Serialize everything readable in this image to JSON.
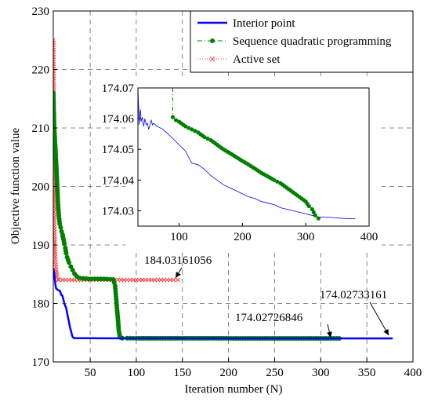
{
  "chart_data": [
    {
      "type": "line",
      "xlabel": "Iteration number (N)",
      "ylabel": "Objective function value",
      "xlim": [
        10,
        400
      ],
      "ylim": [
        170,
        230
      ],
      "xticks": [
        50,
        100,
        150,
        200,
        250,
        300,
        350,
        400
      ],
      "yticks": [
        170,
        180,
        190,
        200,
        210,
        220,
        230
      ],
      "grid": true,
      "legend_position": "top-right",
      "series": [
        {
          "name": "Interior point",
          "color": "#0000ff",
          "style": "solid",
          "marker": "none",
          "x": [
            10,
            11,
            12,
            13,
            15,
            17,
            19,
            20,
            22,
            24,
            26,
            28,
            30,
            31,
            32,
            33,
            35,
            40,
            50,
            80,
            100,
            150,
            200,
            250,
            300,
            350,
            378
          ],
          "y": [
            186.0,
            185.2,
            183.5,
            182.6,
            182.3,
            182.2,
            181.4,
            181.3,
            180.0,
            179.2,
            177.6,
            176.0,
            174.8,
            174.3,
            174.12,
            174.07,
            174.06,
            174.06,
            174.05,
            174.045,
            174.04,
            174.035,
            174.032,
            174.03,
            174.029,
            174.028,
            174.02733161
          ]
        },
        {
          "name": "Sequence quadratic programming",
          "color": "#008000",
          "style": "dash-dot",
          "marker": "circle",
          "x": [
            10,
            11,
            12,
            13,
            14,
            15,
            16,
            17,
            18,
            19,
            20,
            21,
            22,
            23,
            24,
            25,
            27,
            29,
            31,
            33,
            35,
            38,
            42,
            45,
            48,
            55,
            65,
            75,
            77,
            78,
            79,
            80,
            81,
            82,
            83,
            85,
            90,
            100,
            150,
            200,
            250,
            300,
            320
          ],
          "y": [
            216.0,
            210.0,
            207.2,
            204.3,
            201.0,
            197.3,
            195.0,
            193.6,
            193.0,
            192.3,
            191.8,
            191.0,
            190.2,
            189.5,
            188.6,
            187.9,
            187.0,
            186.3,
            185.7,
            185.1,
            184.7,
            184.4,
            184.3,
            184.25,
            184.2,
            184.2,
            184.2,
            184.1,
            183.0,
            181.2,
            179.2,
            177.5,
            175.4,
            174.5,
            174.15,
            174.06,
            174.055,
            174.05,
            174.04,
            174.035,
            174.031,
            174.028,
            174.02726846
          ]
        },
        {
          "name": "Active set",
          "color": "#ff4040",
          "style": "dotted",
          "marker": "x",
          "x": [
            10,
            11,
            12,
            13,
            14,
            15,
            16,
            20,
            30,
            40,
            50,
            60,
            70,
            80,
            90,
            100,
            110,
            120,
            130,
            140,
            145
          ],
          "y": [
            225.0,
            194.0,
            188.0,
            185.8,
            184.6,
            184.1,
            184.03161056,
            184.03161056,
            184.03161056,
            184.03161056,
            184.03161056,
            184.03161056,
            184.03161056,
            184.03161056,
            184.03161056,
            184.03161056,
            184.03161056,
            184.03161056,
            184.03161056,
            184.03161056,
            184.03161056
          ]
        }
      ],
      "annotations": [
        {
          "text": "184.03161056",
          "x": 145,
          "y": 184.03161056
        },
        {
          "text": "174.02726846",
          "x": 320,
          "y": 174.02726846
        },
        {
          "text": "174.02733161",
          "x": 378,
          "y": 174.02733161
        }
      ]
    },
    {
      "type": "line",
      "title": "",
      "xlim": [
        35,
        400
      ],
      "ylim": [
        174.025,
        174.07
      ],
      "xticks": [
        100,
        200,
        300,
        400
      ],
      "yticks": [
        174.03,
        174.04,
        174.05,
        174.06,
        174.07
      ],
      "grid": false,
      "series": [
        {
          "color": "#0000ff",
          "style": "solid",
          "marker": "none",
          "x": [
            35,
            37,
            38,
            39,
            40,
            42,
            44,
            46,
            48,
            50,
            52,
            54,
            56,
            58,
            60,
            65,
            70,
            75,
            80,
            85,
            90,
            95,
            100,
            105,
            110,
            120,
            130,
            140,
            150,
            160,
            170,
            180,
            190,
            200,
            210,
            220,
            230,
            240,
            250,
            260,
            270,
            280,
            290,
            300,
            310,
            320,
            340,
            360,
            378
          ],
          "y": [
            174.07,
            174.058,
            174.0615,
            174.063,
            174.059,
            174.0605,
            174.0575,
            174.06,
            174.058,
            174.0585,
            174.0565,
            174.058,
            174.0595,
            174.058,
            174.0585,
            174.0575,
            174.057,
            174.0565,
            174.0555,
            174.0545,
            174.0535,
            174.0525,
            174.0515,
            174.0505,
            174.0495,
            174.0455,
            174.045,
            174.0435,
            174.0415,
            174.04,
            174.0385,
            174.0375,
            174.0365,
            174.0355,
            174.0345,
            174.034,
            174.033,
            174.0325,
            174.032,
            174.031,
            174.0305,
            174.03,
            174.0295,
            174.029,
            174.0285,
            174.028,
            174.0278,
            174.0275,
            174.0274
          ]
        },
        {
          "color": "#008000",
          "style": "solid",
          "marker": "circle",
          "x": [
            90,
            95,
            100,
            110,
            120,
            130,
            140,
            150,
            160,
            170,
            180,
            190,
            200,
            210,
            220,
            230,
            240,
            250,
            260,
            270,
            280,
            290,
            300,
            305,
            310,
            315,
            320
          ],
          "y": [
            174.0605,
            174.0595,
            174.059,
            174.0575,
            174.0565,
            174.0555,
            174.054,
            174.053,
            174.0515,
            174.05,
            174.0488,
            174.0475,
            174.0462,
            174.045,
            174.0437,
            174.0423,
            174.0412,
            174.04,
            174.039,
            174.0375,
            174.036,
            174.0345,
            174.033,
            174.0315,
            174.0305,
            174.0285,
            174.0275
          ]
        }
      ]
    }
  ]
}
